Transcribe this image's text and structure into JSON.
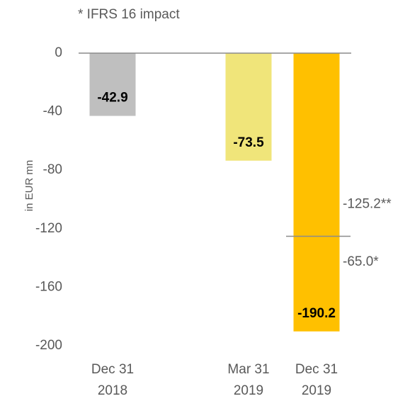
{
  "chart_data": {
    "type": "bar",
    "annotation": "* IFRS 16 impact",
    "y_label": "in EUR mn",
    "categories": [
      [
        "Dec 31",
        "2018"
      ],
      null,
      [
        "Mar 31",
        "2019"
      ],
      [
        "Dec 31",
        "2019"
      ]
    ],
    "values": [
      -42.9,
      null,
      -73.5,
      -190.2
    ],
    "colors": [
      "#bfbfbf",
      null,
      "#f0e57a",
      "#ffc000"
    ],
    "segments": [
      {
        "value": -125.2,
        "label": "-125.2**"
      },
      {
        "value": -65.0,
        "label": "-65.0*"
      }
    ],
    "ylim": [
      -200,
      0
    ],
    "yticks": [
      0,
      -40,
      -80,
      -120,
      -160,
      -200
    ]
  }
}
